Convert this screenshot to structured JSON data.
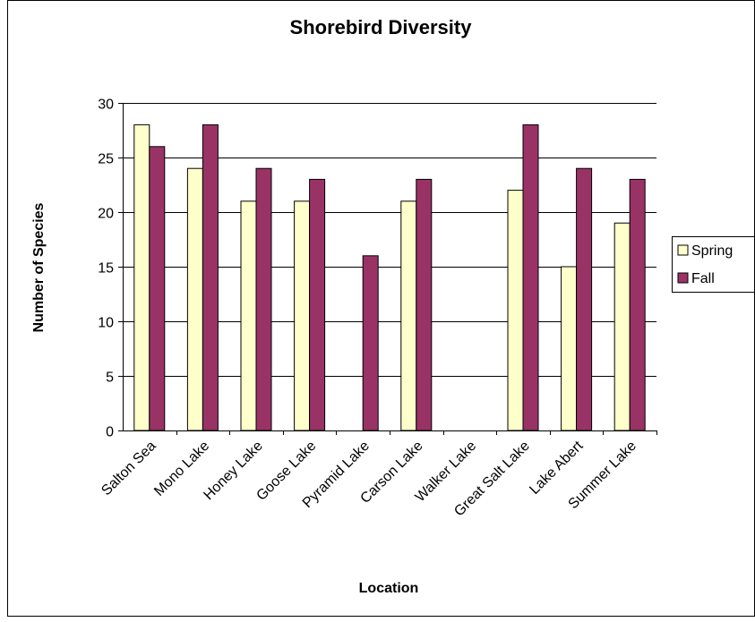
{
  "chart_data": {
    "type": "bar",
    "title": "Shorebird Diversity",
    "xlabel": "Location",
    "ylabel": "Number of Species",
    "ylim": [
      0,
      30
    ],
    "yticks": [
      0,
      5,
      10,
      15,
      20,
      25,
      30
    ],
    "grid": true,
    "legend_position": "right",
    "categories": [
      "Salton Sea",
      "Mono Lake",
      "Honey Lake",
      "Goose Lake",
      "Pyramid Lake",
      "Carson Lake",
      "Walker Lake",
      "Great Salt Lake",
      "Lake Abert",
      "Summer Lake"
    ],
    "series": [
      {
        "name": "Spring",
        "color": "#ffffcc",
        "values": [
          28,
          24,
          21,
          21,
          0,
          21,
          0,
          22,
          15,
          19
        ]
      },
      {
        "name": "Fall",
        "color": "#993366",
        "values": [
          26,
          28,
          24,
          23,
          16,
          23,
          0,
          28,
          24,
          23
        ]
      }
    ]
  }
}
